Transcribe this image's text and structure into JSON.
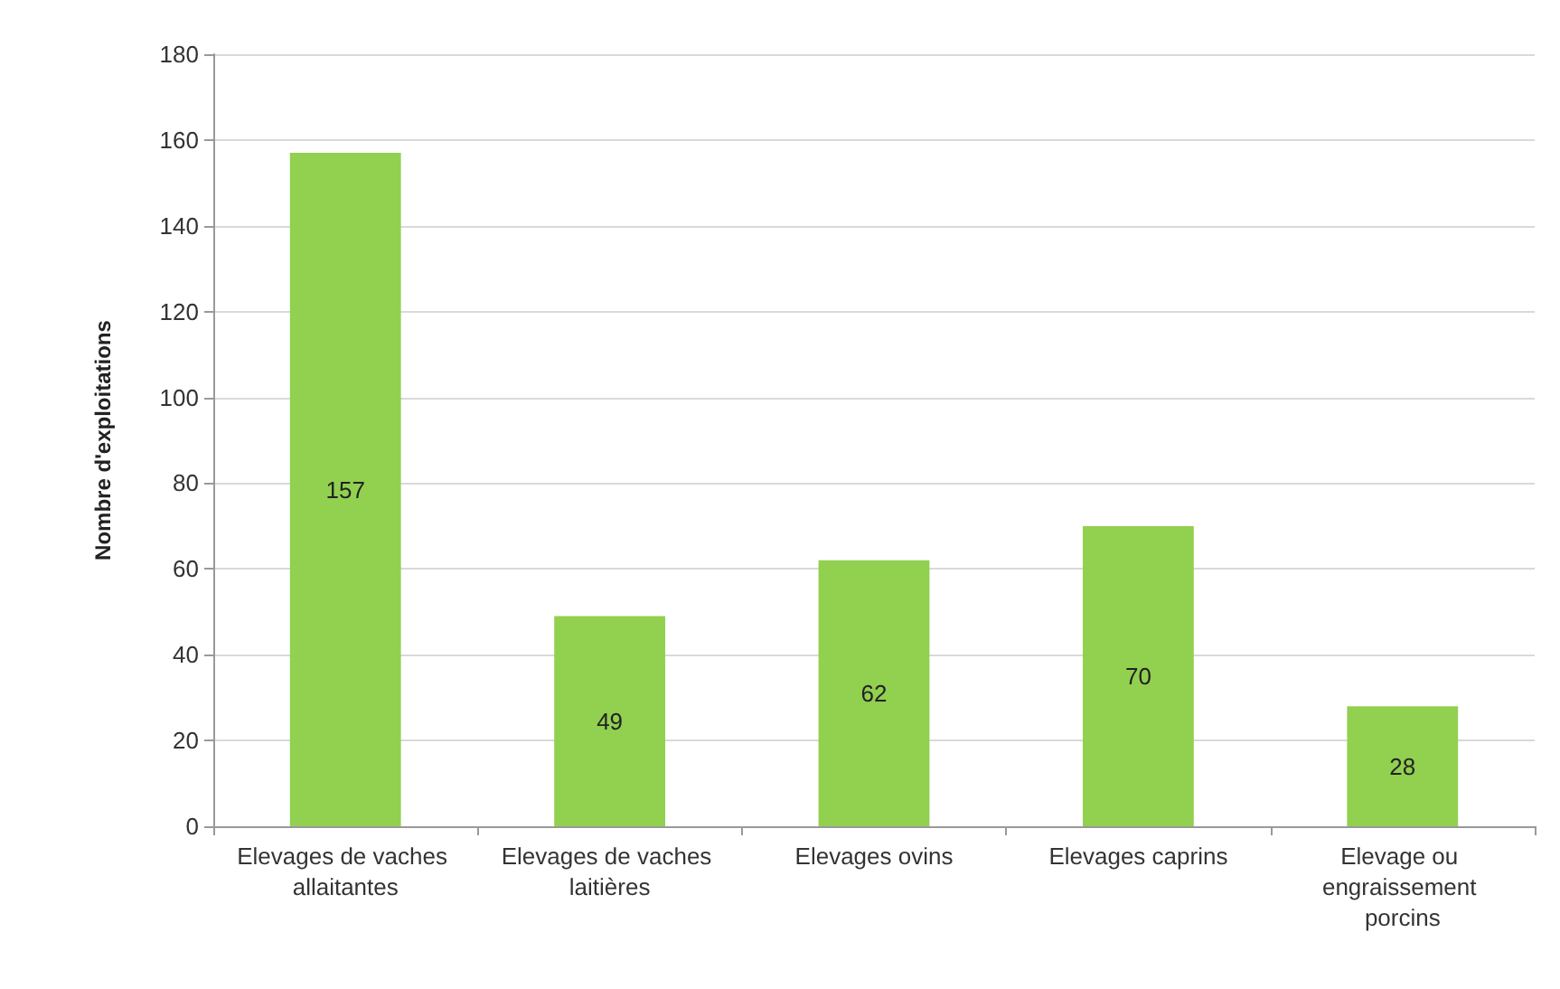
{
  "chart_data": {
    "type": "bar",
    "ylabel": "Nombre d'exploitations",
    "categories": [
      "Elevages de vaches allaitantes",
      "Elevages de vaches laitières",
      "Elevages ovins",
      "Elevages caprins",
      "Elevage ou engraissement porcins"
    ],
    "values": [
      157,
      49,
      62,
      70,
      28
    ],
    "color": "#92d050",
    "ylim": [
      0,
      180
    ],
    "yticks": [
      0,
      20,
      40,
      60,
      80,
      100,
      120,
      140,
      160,
      180
    ],
    "grid": "y",
    "data_labels": true
  }
}
